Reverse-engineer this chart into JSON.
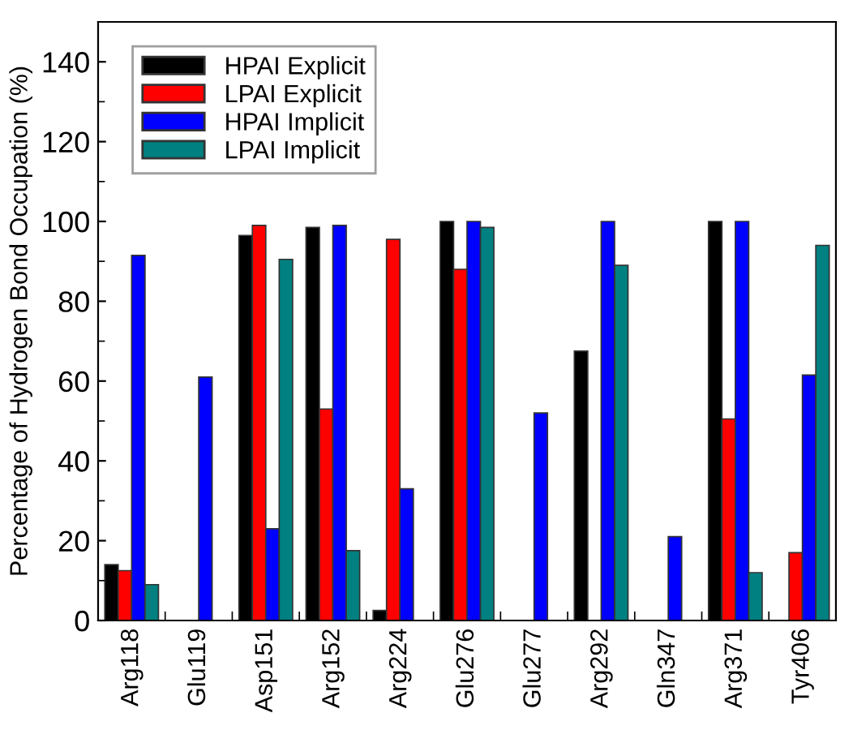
{
  "chart_data": {
    "type": "bar",
    "ylabel": "Percentage of Hydrogen Bond Occupation (%)",
    "categories": [
      "Arg118",
      "Glu119",
      "Asp151",
      "Arg152",
      "Arg224",
      "Glu276",
      "Glu277",
      "Arg292",
      "Gln347",
      "Arg371",
      "Tyr406"
    ],
    "series": [
      {
        "name": "HPAI Explicit",
        "color": "#000000",
        "values": [
          14,
          0,
          96.5,
          98.5,
          2.5,
          100,
          0,
          67.5,
          0,
          100,
          0
        ]
      },
      {
        "name": "LPAI Explicit",
        "color": "#ff0000",
        "values": [
          12.5,
          0,
          99,
          53,
          95.5,
          88,
          0,
          0,
          0,
          50.5,
          17
        ]
      },
      {
        "name": "HPAI Implicit",
        "color": "#0000ff",
        "values": [
          91.5,
          61,
          23,
          99,
          33,
          100,
          52,
          100,
          21,
          100,
          61.5
        ]
      },
      {
        "name": "LPAI Implicit",
        "color": "#008080",
        "values": [
          9,
          0,
          90.5,
          17.5,
          null,
          98.5,
          null,
          89,
          0,
          12,
          94
        ]
      }
    ],
    "ylim": [
      0,
      150
    ],
    "yticks": [
      0,
      20,
      40,
      60,
      80,
      100,
      120,
      140
    ],
    "grid": false,
    "legend": "top left"
  }
}
